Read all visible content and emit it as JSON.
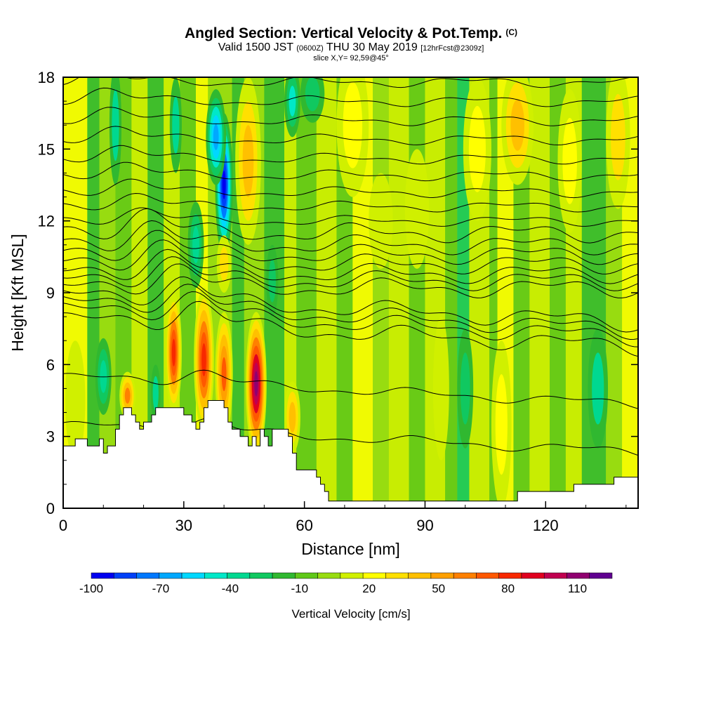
{
  "header": {
    "title": "Angled Section: Vertical Velocity & Pot.Temp.",
    "title_mark": "(C)",
    "subtitle_a": "Valid 1500 JST",
    "subtitle_b": "(0600Z)",
    "subtitle_c": "THU 30 May 2019",
    "subtitle_d": "[12hrFcst@2309z]",
    "slice": "slice X,Y= 92,59@45°"
  },
  "chart_data": {
    "type": "heatmap",
    "xlabel": "Distance [nm]",
    "ylabel": "Height [Kft MSL]",
    "xlim": [
      0,
      143
    ],
    "ylim": [
      0,
      18
    ],
    "x_ticks": [
      "0",
      "30",
      "60",
      "90",
      "120"
    ],
    "x_tick_values": [
      0,
      30,
      60,
      90,
      120
    ],
    "y_ticks": [
      "0",
      "3",
      "6",
      "9",
      "12",
      "15",
      "18"
    ],
    "y_tick_values": [
      0,
      3,
      6,
      9,
      12,
      15,
      18
    ],
    "colorbar": {
      "title": "Vertical Velocity [cm/s]",
      "labels": [
        "-100",
        "-70",
        "-40",
        "-10",
        "20",
        "50",
        "80",
        "110"
      ],
      "label_values": [
        -100,
        -70,
        -40,
        -10,
        20,
        50,
        80,
        110
      ],
      "min": -100,
      "max": 125,
      "colors": [
        "#0000f0",
        "#0040f8",
        "#0078ff",
        "#00a8ff",
        "#00d8ff",
        "#00e8c8",
        "#00d890",
        "#10c860",
        "#30b830",
        "#60c818",
        "#98dc10",
        "#d0f000",
        "#ffff00",
        "#ffe000",
        "#ffc000",
        "#ffa000",
        "#ff8000",
        "#ff5800",
        "#f82800",
        "#e00020",
        "#c00050",
        "#900070",
        "#600090"
      ]
    },
    "terrain_kft": [
      [
        0,
        2.6
      ],
      [
        3,
        2.6
      ],
      [
        3,
        2.9
      ],
      [
        6,
        2.9
      ],
      [
        6,
        2.6
      ],
      [
        9,
        2.6
      ],
      [
        9,
        2.9
      ],
      [
        10,
        2.9
      ],
      [
        10,
        2.3
      ],
      [
        11,
        2.3
      ],
      [
        11,
        2.6
      ],
      [
        13,
        2.6
      ],
      [
        13,
        3.3
      ],
      [
        14,
        3.3
      ],
      [
        14,
        3.9
      ],
      [
        15,
        3.9
      ],
      [
        15,
        4.2
      ],
      [
        17,
        4.2
      ],
      [
        17,
        3.9
      ],
      [
        18,
        3.9
      ],
      [
        18,
        3.6
      ],
      [
        19,
        3.6
      ],
      [
        19,
        3.3
      ],
      [
        20,
        3.3
      ],
      [
        20,
        3.6
      ],
      [
        22,
        3.6
      ],
      [
        22,
        3.9
      ],
      [
        23,
        3.9
      ],
      [
        23,
        4.2
      ],
      [
        30,
        4.2
      ],
      [
        30,
        3.9
      ],
      [
        32,
        3.9
      ],
      [
        32,
        3.6
      ],
      [
        33,
        3.6
      ],
      [
        33,
        3.3
      ],
      [
        34,
        3.3
      ],
      [
        34,
        3.6
      ],
      [
        35,
        3.6
      ],
      [
        35,
        4.2
      ],
      [
        36,
        4.2
      ],
      [
        36,
        4.5
      ],
      [
        40,
        4.5
      ],
      [
        40,
        4.2
      ],
      [
        41,
        4.2
      ],
      [
        41,
        3.6
      ],
      [
        42,
        3.6
      ],
      [
        42,
        3.3
      ],
      [
        44,
        3.3
      ],
      [
        44,
        3
      ],
      [
        46,
        3
      ],
      [
        46,
        2.6
      ],
      [
        47,
        2.6
      ],
      [
        47,
        3
      ],
      [
        48,
        3
      ],
      [
        48,
        2.6
      ],
      [
        49,
        2.6
      ],
      [
        49,
        3.3
      ],
      [
        50,
        3.3
      ],
      [
        50,
        3
      ],
      [
        51,
        3
      ],
      [
        51,
        2.6
      ],
      [
        52,
        2.6
      ],
      [
        52,
        3.3
      ],
      [
        56,
        3.3
      ],
      [
        56,
        3
      ],
      [
        57,
        3
      ],
      [
        57,
        2.3
      ],
      [
        58,
        2.3
      ],
      [
        58,
        1.6
      ],
      [
        63,
        1.6
      ],
      [
        63,
        1.3
      ],
      [
        64,
        1.3
      ],
      [
        64,
        1
      ],
      [
        65,
        1
      ],
      [
        65,
        0.7
      ],
      [
        66,
        0.7
      ],
      [
        66,
        0.3
      ],
      [
        113,
        0.3
      ],
      [
        113,
        0.7
      ],
      [
        127,
        0.7
      ],
      [
        127,
        1
      ],
      [
        137,
        1
      ],
      [
        137,
        1.3
      ],
      [
        143,
        1.3
      ]
    ],
    "updrafts": [
      {
        "x": 48,
        "y": 5.2,
        "rx": 2.6,
        "ry": 3.0,
        "value": 115
      },
      {
        "x": 40,
        "y": 5.6,
        "rx": 2.2,
        "ry": 2.6,
        "value": 70
      },
      {
        "x": 35,
        "y": 6.2,
        "rx": 2.5,
        "ry": 3.0,
        "value": 85
      },
      {
        "x": 27.5,
        "y": 6.5,
        "rx": 2.0,
        "ry": 2.5,
        "value": 85
      },
      {
        "x": 16,
        "y": 4.7,
        "rx": 2.0,
        "ry": 1.0,
        "value": 60
      },
      {
        "x": 46,
        "y": 14.5,
        "rx": 3.2,
        "ry": 3.5,
        "value": 45
      },
      {
        "x": 40,
        "y": 10.2,
        "rx": 1.8,
        "ry": 1.2,
        "value": 30
      },
      {
        "x": 72,
        "y": 16,
        "rx": 4.0,
        "ry": 3.0,
        "value": 25
      },
      {
        "x": 79,
        "y": 12,
        "rx": 3.0,
        "ry": 2.0,
        "value": 20
      },
      {
        "x": 103,
        "y": 15,
        "rx": 3.5,
        "ry": 3.0,
        "value": 25
      },
      {
        "x": 113,
        "y": 16,
        "rx": 4.0,
        "ry": 2.5,
        "value": 40
      },
      {
        "x": 126,
        "y": 14.5,
        "rx": 3.0,
        "ry": 3.0,
        "value": 25
      },
      {
        "x": 138,
        "y": 15.5,
        "rx": 3.0,
        "ry": 3.0,
        "value": 30
      },
      {
        "x": 109,
        "y": 3.5,
        "rx": 2.5,
        "ry": 3.5,
        "value": 25
      },
      {
        "x": 94,
        "y": 5,
        "rx": 2.0,
        "ry": 3.0,
        "value": 15
      },
      {
        "x": 3,
        "y": 4.5,
        "rx": 2.5,
        "ry": 2.5,
        "value": 20
      },
      {
        "x": 57,
        "y": 3.8,
        "rx": 2.0,
        "ry": 1.5,
        "value": 45
      },
      {
        "x": 88,
        "y": 12.5,
        "rx": 3.0,
        "ry": 2.5,
        "value": 15
      }
    ],
    "downdrafts": [
      {
        "x": 40,
        "y": 13.5,
        "rx": 2.2,
        "ry": 3.0,
        "value": -100
      },
      {
        "x": 38,
        "y": 15.5,
        "rx": 2.5,
        "ry": 2.0,
        "value": -70
      },
      {
        "x": 10,
        "y": 5.5,
        "rx": 2.0,
        "ry": 1.6,
        "value": -40
      },
      {
        "x": 13,
        "y": 16,
        "rx": 1.5,
        "ry": 2.5,
        "value": -35
      },
      {
        "x": 28,
        "y": 16,
        "rx": 1.5,
        "ry": 2.0,
        "value": -35
      },
      {
        "x": 57,
        "y": 17,
        "rx": 2.0,
        "ry": 1.5,
        "value": -45
      },
      {
        "x": 62,
        "y": 17.3,
        "rx": 3.0,
        "ry": 1.2,
        "value": -30
      },
      {
        "x": 133,
        "y": 5,
        "rx": 2.5,
        "ry": 2.5,
        "value": -35
      },
      {
        "x": 100,
        "y": 5,
        "rx": 2.0,
        "ry": 2.5,
        "value": -30
      },
      {
        "x": 33,
        "y": 11,
        "rx": 2.0,
        "ry": 1.8,
        "value": -40
      },
      {
        "x": 23,
        "y": 4.8,
        "rx": 1.2,
        "ry": 1.2,
        "value": -35
      },
      {
        "x": 52,
        "y": 9.5,
        "rx": 1.5,
        "ry": 1.5,
        "value": -30
      }
    ],
    "theta_levels_kft": [
      3.5,
      5.5,
      7.9,
      8.3,
      8.6,
      8.9,
      9.2,
      9.5,
      9.8,
      10.2,
      10.6,
      11.0,
      11.5,
      12.0,
      12.6,
      13.2,
      13.9,
      14.6,
      15.4,
      16.2,
      17.0,
      17.8
    ]
  }
}
